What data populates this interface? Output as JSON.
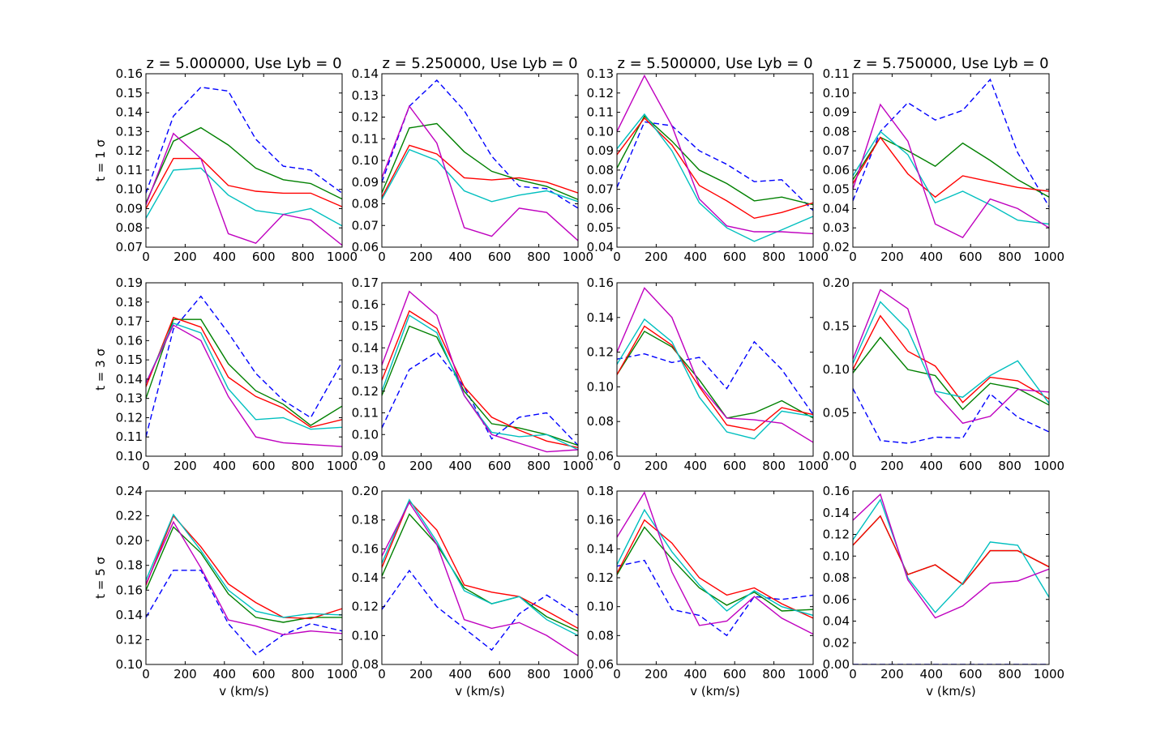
{
  "chart_data": {
    "type": "line",
    "layout": "3x4 grid of subplots",
    "col_titles": [
      "z = 5.000000, Use Lyb = 0",
      "z = 5.250000, Use Lyb = 0",
      "z = 5.500000, Use Lyb = 0",
      "z = 5.750000, Use Lyb = 0"
    ],
    "row_labels": [
      "t = 1 σ",
      "t = 3 σ",
      "t = 5 σ"
    ],
    "xlabel": "v (km/s)",
    "xlim": [
      0,
      1000
    ],
    "xticks": [
      "0",
      "200",
      "400",
      "600",
      "800",
      "1000"
    ],
    "series_colors": [
      "#0000ff",
      "#008000",
      "#ff0000",
      "#00bfbf",
      "#bf00bf"
    ],
    "series_styles": [
      "dashed",
      "solid",
      "solid",
      "solid",
      "solid"
    ],
    "x": [
      0,
      140,
      280,
      420,
      560,
      700,
      840,
      1000
    ],
    "panels": [
      {
        "row": 0,
        "col": 0,
        "ylim": [
          0.07,
          0.16
        ],
        "yticks": [
          "0.07",
          "0.08",
          "0.09",
          "0.10",
          "0.11",
          "0.12",
          "0.13",
          "0.14",
          "0.15",
          "0.16"
        ],
        "series": [
          [
            0.098,
            0.138,
            0.153,
            0.151,
            0.126,
            0.112,
            0.11,
            0.098
          ],
          [
            0.093,
            0.125,
            0.132,
            0.123,
            0.111,
            0.105,
            0.103,
            0.095
          ],
          [
            0.09,
            0.116,
            0.116,
            0.102,
            0.099,
            0.098,
            0.098,
            0.091
          ],
          [
            0.085,
            0.11,
            0.111,
            0.097,
            0.089,
            0.087,
            0.09,
            0.081
          ],
          [
            0.092,
            0.129,
            0.116,
            0.077,
            0.072,
            0.087,
            0.084,
            0.071
          ]
        ]
      },
      {
        "row": 0,
        "col": 1,
        "ylim": [
          0.06,
          0.14
        ],
        "yticks": [
          "0.06",
          "0.07",
          "0.08",
          "0.09",
          "0.10",
          "0.11",
          "0.12",
          "0.13",
          "0.14"
        ],
        "series": [
          [
            0.09,
            0.125,
            0.137,
            0.123,
            0.102,
            0.088,
            0.087,
            0.078
          ],
          [
            0.085,
            0.115,
            0.117,
            0.104,
            0.095,
            0.091,
            0.088,
            0.082
          ],
          [
            0.083,
            0.107,
            0.103,
            0.092,
            0.091,
            0.092,
            0.09,
            0.085
          ],
          [
            0.082,
            0.105,
            0.1,
            0.086,
            0.081,
            0.084,
            0.086,
            0.081
          ],
          [
            0.092,
            0.125,
            0.108,
            0.069,
            0.065,
            0.078,
            0.076,
            0.063
          ]
        ]
      },
      {
        "row": 0,
        "col": 2,
        "ylim": [
          0.04,
          0.13
        ],
        "yticks": [
          "0.04",
          "0.05",
          "0.06",
          "0.07",
          "0.08",
          "0.09",
          "0.10",
          "0.11",
          "0.12",
          "0.13"
        ],
        "series": [
          [
            0.071,
            0.105,
            0.103,
            0.09,
            0.083,
            0.074,
            0.075,
            0.059
          ],
          [
            0.081,
            0.108,
            0.095,
            0.08,
            0.073,
            0.064,
            0.066,
            0.062
          ],
          [
            0.088,
            0.107,
            0.093,
            0.072,
            0.064,
            0.055,
            0.058,
            0.063
          ],
          [
            0.091,
            0.109,
            0.09,
            0.063,
            0.05,
            0.043,
            0.049,
            0.056
          ],
          [
            0.1,
            0.129,
            0.103,
            0.065,
            0.051,
            0.048,
            0.048,
            0.047
          ]
        ]
      },
      {
        "row": 0,
        "col": 3,
        "ylim": [
          0.02,
          0.11
        ],
        "yticks": [
          "0.02",
          "0.03",
          "0.04",
          "0.05",
          "0.06",
          "0.07",
          "0.08",
          "0.09",
          "0.10",
          "0.11"
        ],
        "series": [
          [
            0.044,
            0.08,
            0.095,
            0.086,
            0.091,
            0.107,
            0.069,
            0.041
          ],
          [
            0.055,
            0.077,
            0.07,
            0.062,
            0.074,
            0.065,
            0.055,
            0.046
          ],
          [
            0.053,
            0.077,
            0.058,
            0.046,
            0.057,
            0.054,
            0.051,
            0.049
          ],
          [
            0.057,
            0.08,
            0.068,
            0.043,
            0.049,
            0.042,
            0.034,
            0.032
          ],
          [
            0.05,
            0.094,
            0.075,
            0.032,
            0.025,
            0.045,
            0.04,
            0.03
          ]
        ]
      },
      {
        "row": 1,
        "col": 0,
        "ylim": [
          0.1,
          0.19
        ],
        "yticks": [
          "0.10",
          "0.11",
          "0.12",
          "0.13",
          "0.14",
          "0.15",
          "0.16",
          "0.17",
          "0.18",
          "0.19"
        ],
        "series": [
          [
            0.11,
            0.166,
            0.183,
            0.164,
            0.143,
            0.129,
            0.12,
            0.149
          ],
          [
            0.13,
            0.171,
            0.171,
            0.148,
            0.134,
            0.127,
            0.116,
            0.126
          ],
          [
            0.136,
            0.172,
            0.167,
            0.141,
            0.131,
            0.125,
            0.115,
            0.119
          ],
          [
            0.138,
            0.169,
            0.164,
            0.135,
            0.119,
            0.12,
            0.114,
            0.115
          ],
          [
            0.138,
            0.168,
            0.16,
            0.131,
            0.11,
            0.107,
            0.106,
            0.105
          ]
        ]
      },
      {
        "row": 1,
        "col": 1,
        "ylim": [
          0.09,
          0.17
        ],
        "yticks": [
          "0.09",
          "0.10",
          "0.11",
          "0.12",
          "0.13",
          "0.14",
          "0.15",
          "0.16",
          "0.17"
        ],
        "series": [
          [
            0.103,
            0.13,
            0.138,
            0.122,
            0.098,
            0.108,
            0.11,
            0.095
          ],
          [
            0.118,
            0.15,
            0.145,
            0.12,
            0.105,
            0.103,
            0.1,
            0.095
          ],
          [
            0.125,
            0.157,
            0.149,
            0.122,
            0.108,
            0.102,
            0.097,
            0.094
          ],
          [
            0.12,
            0.155,
            0.147,
            0.118,
            0.101,
            0.099,
            0.1,
            0.093
          ],
          [
            0.132,
            0.166,
            0.155,
            0.118,
            0.1,
            0.096,
            0.092,
            0.093
          ]
        ]
      },
      {
        "row": 1,
        "col": 2,
        "ylim": [
          0.06,
          0.16
        ],
        "yticks": [
          "0.06",
          "0.08",
          "0.10",
          "0.12",
          "0.14",
          "0.16"
        ],
        "series": [
          [
            0.116,
            0.119,
            0.114,
            0.117,
            0.099,
            0.126,
            0.11,
            0.084
          ],
          [
            0.107,
            0.132,
            0.123,
            0.104,
            0.082,
            0.085,
            0.092,
            0.082
          ],
          [
            0.107,
            0.135,
            0.124,
            0.1,
            0.078,
            0.075,
            0.088,
            0.084
          ],
          [
            0.113,
            0.139,
            0.126,
            0.094,
            0.074,
            0.07,
            0.086,
            0.083
          ],
          [
            0.12,
            0.157,
            0.14,
            0.101,
            0.082,
            0.081,
            0.079,
            0.068
          ]
        ]
      },
      {
        "row": 1,
        "col": 3,
        "ylim": [
          0.0,
          0.2
        ],
        "yticks": [
          "0.00",
          "0.05",
          "0.10",
          "0.15",
          "0.20"
        ],
        "series": [
          [
            0.078,
            0.018,
            0.015,
            0.022,
            0.021,
            0.072,
            0.045,
            0.028
          ],
          [
            0.096,
            0.137,
            0.1,
            0.093,
            0.054,
            0.084,
            0.078,
            0.059
          ],
          [
            0.1,
            0.162,
            0.121,
            0.104,
            0.062,
            0.091,
            0.087,
            0.066
          ],
          [
            0.107,
            0.178,
            0.146,
            0.075,
            0.068,
            0.093,
            0.11,
            0.061
          ],
          [
            0.112,
            0.192,
            0.17,
            0.073,
            0.038,
            0.046,
            0.077,
            0.074
          ]
        ]
      },
      {
        "row": 2,
        "col": 0,
        "ylim": [
          0.1,
          0.24
        ],
        "yticks": [
          "0.10",
          "0.12",
          "0.14",
          "0.16",
          "0.18",
          "0.20",
          "0.22",
          "0.24"
        ],
        "series": [
          [
            0.138,
            0.176,
            0.176,
            0.133,
            0.108,
            0.124,
            0.133,
            0.127
          ],
          [
            0.16,
            0.211,
            0.19,
            0.157,
            0.138,
            0.134,
            0.138,
            0.138
          ],
          [
            0.164,
            0.22,
            0.195,
            0.165,
            0.15,
            0.138,
            0.137,
            0.145
          ],
          [
            0.168,
            0.221,
            0.192,
            0.16,
            0.143,
            0.138,
            0.141,
            0.14
          ],
          [
            0.165,
            0.215,
            0.178,
            0.136,
            0.131,
            0.124,
            0.127,
            0.125
          ]
        ]
      },
      {
        "row": 2,
        "col": 1,
        "ylim": [
          0.08,
          0.2
        ],
        "yticks": [
          "0.08",
          "0.10",
          "0.12",
          "0.14",
          "0.16",
          "0.18",
          "0.20"
        ],
        "series": [
          [
            0.118,
            0.145,
            0.12,
            0.105,
            0.09,
            0.115,
            0.128,
            0.114
          ],
          [
            0.141,
            0.184,
            0.163,
            0.133,
            0.122,
            0.127,
            0.113,
            0.103
          ],
          [
            0.147,
            0.193,
            0.173,
            0.135,
            0.13,
            0.127,
            0.117,
            0.105
          ],
          [
            0.15,
            0.194,
            0.165,
            0.131,
            0.122,
            0.127,
            0.111,
            0.1
          ],
          [
            0.155,
            0.192,
            0.163,
            0.111,
            0.105,
            0.109,
            0.1,
            0.086
          ]
        ]
      },
      {
        "row": 2,
        "col": 2,
        "ylim": [
          0.06,
          0.18
        ],
        "yticks": [
          "0.06",
          "0.08",
          "0.10",
          "0.12",
          "0.14",
          "0.16",
          "0.18"
        ],
        "series": [
          [
            0.128,
            0.132,
            0.098,
            0.094,
            0.08,
            0.107,
            0.105,
            0.108
          ],
          [
            0.122,
            0.155,
            0.133,
            0.113,
            0.101,
            0.11,
            0.097,
            0.098
          ],
          [
            0.123,
            0.16,
            0.144,
            0.12,
            0.108,
            0.113,
            0.102,
            0.092
          ],
          [
            0.129,
            0.167,
            0.138,
            0.115,
            0.097,
            0.111,
            0.1,
            0.094
          ],
          [
            0.148,
            0.179,
            0.124,
            0.087,
            0.09,
            0.107,
            0.092,
            0.081
          ]
        ]
      },
      {
        "row": 2,
        "col": 3,
        "ylim": [
          0.0,
          0.16
        ],
        "yticks": [
          "0.00",
          "0.02",
          "0.04",
          "0.06",
          "0.08",
          "0.10",
          "0.12",
          "0.14",
          "0.16"
        ],
        "series": [
          [
            0.0,
            0.0,
            0.0,
            0.0,
            0.0,
            0.0,
            0.0,
            0.0
          ],
          [
            0.11,
            0.137,
            0.083,
            0.092,
            0.074,
            0.105,
            0.105,
            0.09
          ],
          [
            0.11,
            0.137,
            0.083,
            0.092,
            0.074,
            0.105,
            0.105,
            0.09
          ],
          [
            0.115,
            0.152,
            0.08,
            0.048,
            0.075,
            0.113,
            0.11,
            0.062
          ],
          [
            0.133,
            0.157,
            0.078,
            0.043,
            0.054,
            0.075,
            0.077,
            0.088
          ]
        ]
      }
    ]
  }
}
